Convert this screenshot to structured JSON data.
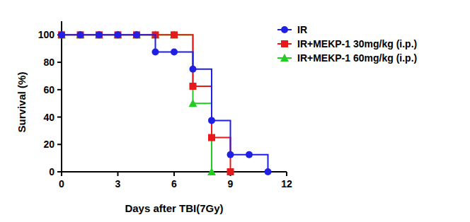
{
  "chart_data": {
    "type": "line",
    "line_style": "step",
    "x_label": "Days after TBI(7Gy)",
    "y_label": "Survival (%)",
    "xlim": [
      0,
      12
    ],
    "xticks": [
      0,
      3,
      6,
      9,
      12
    ],
    "ylim": [
      0,
      110
    ],
    "yticks": [
      0,
      20,
      40,
      60,
      80,
      100
    ],
    "grid": false,
    "legend": "right",
    "series": [
      {
        "name": "IR",
        "color": "#1f1fe6",
        "marker": "circle",
        "x": [
          0,
          1,
          2,
          3,
          4,
          5,
          6,
          7,
          8,
          9,
          10,
          11
        ],
        "values": [
          100,
          100,
          100,
          100,
          100,
          87.5,
          87.5,
          75,
          37.5,
          12.5,
          12.5,
          0
        ]
      },
      {
        "name": "IR+MEKP-1 30mg/kg (i.p.)",
        "color": "#e61a1a",
        "marker": "square",
        "x": [
          0,
          1,
          2,
          3,
          4,
          5,
          6,
          7,
          8,
          9
        ],
        "values": [
          100,
          100,
          100,
          100,
          100,
          100,
          100,
          62.5,
          25,
          0
        ]
      },
      {
        "name": "IR+MEKP-1 60mg/kg (i.p.)",
        "color": "#22cc22",
        "marker": "triangle",
        "x": [
          0,
          1,
          2,
          3,
          4,
          5,
          6,
          7,
          8
        ],
        "values": [
          100,
          100,
          100,
          100,
          100,
          100,
          100,
          50,
          0
        ]
      }
    ]
  }
}
